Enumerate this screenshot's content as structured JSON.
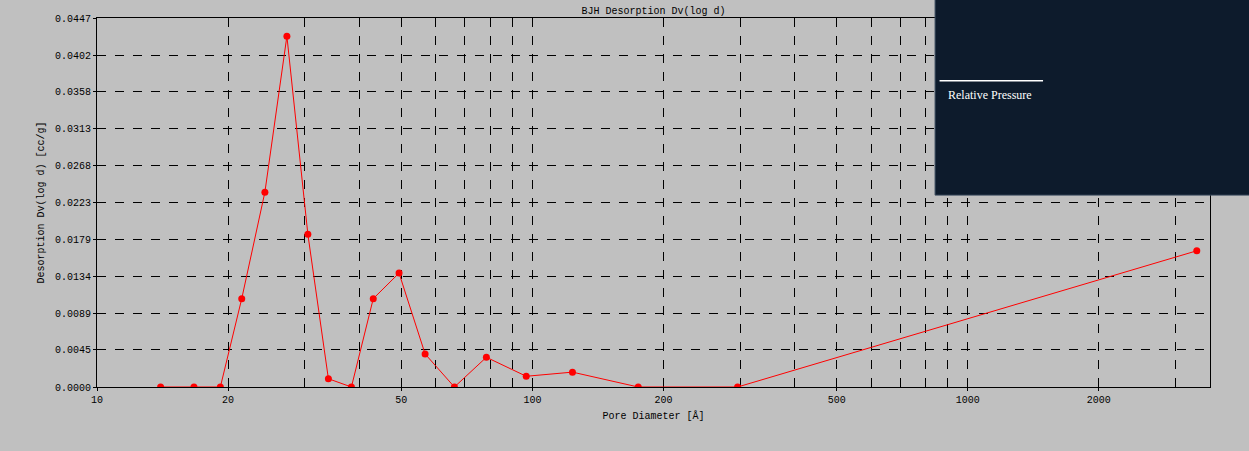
{
  "chart_data": {
    "type": "line",
    "title": "BJH Desorption Dv(log d)",
    "x_label": "Pore Diameter [Å]",
    "y_label": "Desorption Dv(log d) [cc/g]",
    "x": [
      14.0,
      16.7,
      19.2,
      21.5,
      24.3,
      27.3,
      30.5,
      34.0,
      38.4,
      43.1,
      49.4,
      56.7,
      66.2,
      78.4,
      96.8,
      123.6,
      175,
      296,
      3357
    ],
    "values": [
      0,
      0,
      0,
      0.0107,
      0.0236,
      0.0425,
      0.0185,
      0.001,
      0,
      0.0107,
      0.0138,
      0.004,
      0,
      0.0036,
      0.0013,
      0.0018,
      0,
      0,
      0.0165
    ],
    "color": "#ff0000",
    "marker": "circle",
    "line_style": "solid",
    "log": "x",
    "grid": true,
    "xlim": [
      10,
      3600
    ],
    "ylim": [
      0,
      0.0447
    ],
    "xticks": [
      10,
      20,
      50,
      100,
      200,
      500,
      1000,
      2000
    ],
    "yticks": [
      {
        "value": 0,
        "label": "0.0000"
      },
      0.0045,
      0.0089,
      0.0134,
      0.0179,
      0.0223,
      0.0268,
      0.0313,
      0.0358,
      0.0402,
      0.0447
    ],
    "annotations": [
      {
        "text": "Relative Pressure"
      }
    ]
  }
}
